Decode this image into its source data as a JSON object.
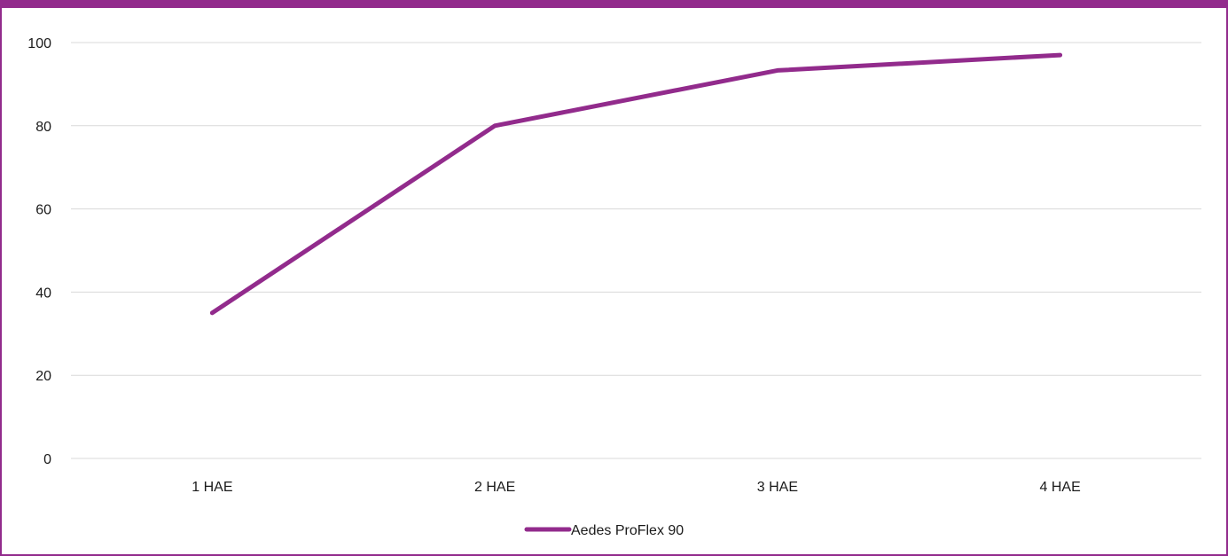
{
  "chart_data": {
    "type": "line",
    "title": "",
    "xlabel": "",
    "ylabel": "",
    "categories": [
      "1 HAE",
      "2 HAE",
      "3 HAE",
      "4 HAE"
    ],
    "series": [
      {
        "name": "Aedes ProFlex 90",
        "values": [
          35,
          80,
          93.3,
          97
        ],
        "color": "#922b8c"
      }
    ],
    "ylim": [
      0,
      100
    ],
    "yticks": [
      0,
      20,
      40,
      60,
      80,
      100
    ],
    "grid": true,
    "legend_position": "bottom"
  }
}
